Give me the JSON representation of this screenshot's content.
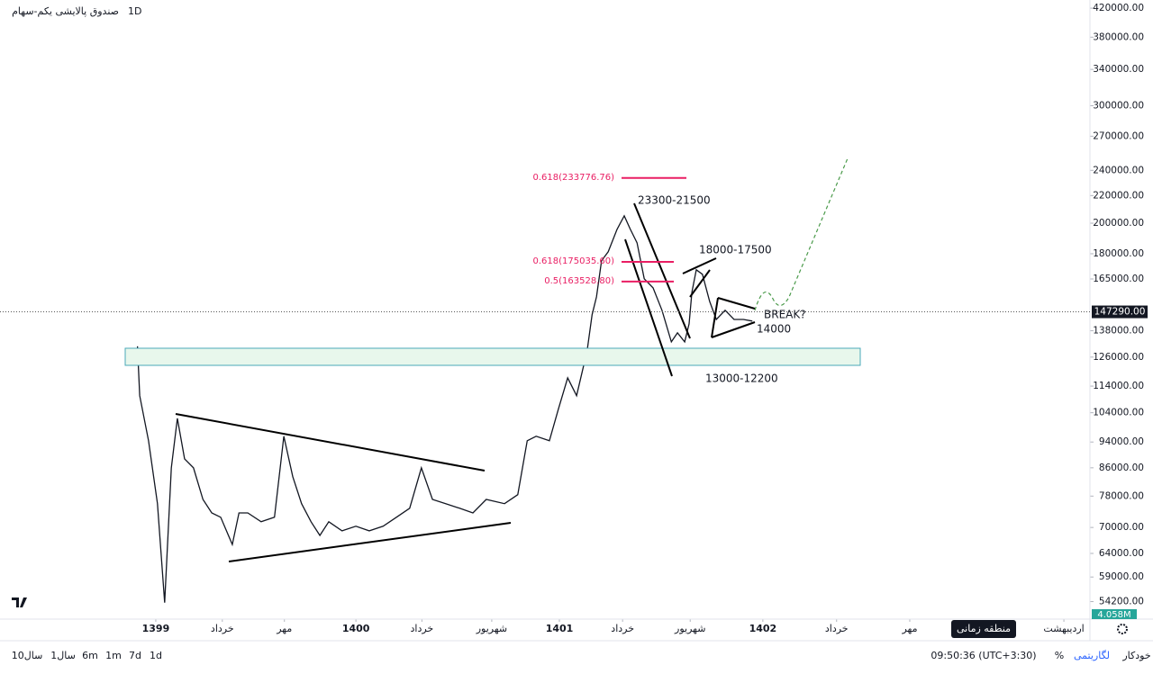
{
  "chart_data": {
    "type": "line",
    "title": "صندوق پالایشی یکم-سهام",
    "interval": "1D",
    "color": "#131722",
    "log_scale": true,
    "x": [
      -33,
      -29,
      -13,
      3,
      16,
      28,
      39,
      52,
      68,
      85,
      101,
      117,
      138,
      150,
      166,
      190,
      214,
      231,
      247,
      263,
      280,
      296,
      312,
      336,
      361,
      385,
      410,
      434,
      458,
      479,
      499,
      523,
      548,
      572,
      596,
      629,
      653,
      670,
      686,
      710,
      726,
      743,
      759,
      778,
      787,
      795,
      804,
      816,
      832,
      845,
      856,
      868,
      881,
      897,
      913,
      930,
      941,
      954,
      962,
      967,
      975,
      986,
      999,
      1011,
      1027,
      1043,
      1060,
      1076
    ],
    "values": [
      130800,
      110300,
      94400,
      76000,
      54000,
      86000,
      102000,
      88700,
      86000,
      77100,
      73600,
      72500,
      66000,
      73600,
      73600,
      71400,
      72500,
      95900,
      83400,
      76000,
      71400,
      68100,
      71400,
      69200,
      70300,
      69200,
      70300,
      72500,
      74800,
      86000,
      77100,
      76000,
      74800,
      73600,
      77100,
      76000,
      78400,
      94400,
      95900,
      94400,
      105200,
      117300,
      110300,
      128800,
      145800,
      155100,
      175700,
      181200,
      195800,
      205200,
      195800,
      186900,
      165100,
      160000,
      148100,
      132800,
      137000,
      132800,
      141300,
      157600,
      170300,
      167700,
      152700,
      143500,
      148100,
      143500,
      143500,
      142700
    ],
    "xlim": [
      -281,
      1685
    ],
    "xticks": [
      {
        "value": 0,
        "label": "1399"
      },
      {
        "value": 120,
        "label": "خرداد"
      },
      {
        "value": 232,
        "label": "مهر"
      },
      {
        "value": 361,
        "label": "1400"
      },
      {
        "value": 480,
        "label": "خرداد"
      },
      {
        "value": 606,
        "label": "شهریور"
      },
      {
        "value": 728,
        "label": "1401"
      },
      {
        "value": 842,
        "label": "خرداد"
      },
      {
        "value": 964,
        "label": "شهریور"
      },
      {
        "value": 1095,
        "label": "1402"
      },
      {
        "value": 1228,
        "label": "خرداد"
      },
      {
        "value": 1360,
        "label": "مهر"
      },
      {
        "value": 1638,
        "label": "اردیبهشت"
      }
    ],
    "ylim": [
      51500,
      432000
    ],
    "yticks": [
      {
        "value": 420000,
        "label": "420000.00"
      },
      {
        "value": 380000,
        "label": "380000.00"
      },
      {
        "value": 340000,
        "label": "340000.00"
      },
      {
        "value": 300000,
        "label": "300000.00"
      },
      {
        "value": 270000,
        "label": "270000.00"
      },
      {
        "value": 240000,
        "label": "240000.00"
      },
      {
        "value": 220000,
        "label": "220000.00"
      },
      {
        "value": 200000,
        "label": "200000.00"
      },
      {
        "value": 180000,
        "label": "180000.00"
      },
      {
        "value": 165000,
        "label": "165000.00"
      },
      {
        "value": 138000,
        "label": "138000.00"
      },
      {
        "value": 126000,
        "label": "126000.00"
      },
      {
        "value": 114000,
        "label": "114000.00"
      },
      {
        "value": 104000,
        "label": "104000.00"
      },
      {
        "value": 94000,
        "label": "94000.00"
      },
      {
        "value": 86000,
        "label": "86000.00"
      },
      {
        "value": 78000,
        "label": "78000.00"
      },
      {
        "value": 70000,
        "label": "70000.00"
      },
      {
        "value": 64000,
        "label": "64000.00"
      },
      {
        "value": 59000,
        "label": "59000.00"
      },
      {
        "value": 54200,
        "label": "54200.00"
      }
    ],
    "last_price": {
      "value": 147290,
      "label": "147290.00"
    },
    "volume_label": "4.058M",
    "fib_levels": [
      {
        "value": 233776.76,
        "label": "0.618(233776.76)"
      },
      {
        "value": 175035.6,
        "label": "0.618(175035.60)"
      },
      {
        "value": 163528.8,
        "label": "0.5(163528.80)"
      }
    ],
    "annotations": [
      "23300-21500",
      "18000-17500",
      "BREAK?",
      "14000",
      "13000-12200"
    ]
  },
  "toolbar": {
    "intervals": [
      "10سال",
      "1سال",
      "6m",
      "1m",
      "7d",
      "1d"
    ],
    "clock": "09:50:36 (UTC+3:30)",
    "percent": "%",
    "log": "لگاریتمی",
    "auto": "خودکار",
    "tooltip": "منطقه زمانی"
  }
}
